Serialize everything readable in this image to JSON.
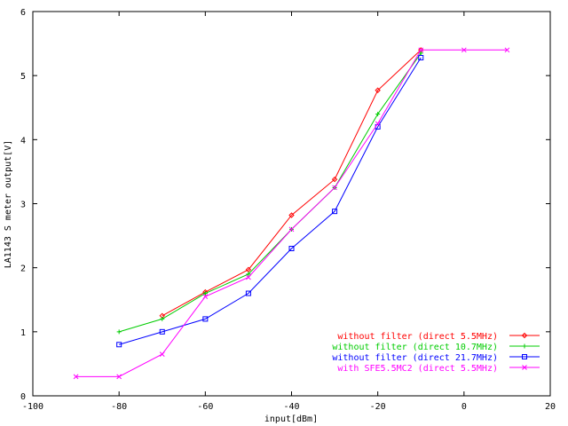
{
  "chart_data": {
    "type": "line",
    "title": "",
    "xlabel": "input[dBm]",
    "ylabel": "LA1143 S meter output[V]",
    "xlim": [
      -100,
      20
    ],
    "ylim": [
      0,
      6
    ],
    "xticks": [
      "-100",
      "-80",
      "-60",
      "-40",
      "-20",
      "0",
      "20"
    ],
    "yticks": [
      "0",
      "1",
      "2",
      "3",
      "4",
      "5",
      "6"
    ],
    "grid": false,
    "legend_position": "bottom-right",
    "series": [
      {
        "name": "without filter (direct 5.5MHz)",
        "color": "#ff0000",
        "marker": "diamond",
        "x": [
          -70,
          -60,
          -50,
          -40,
          -30,
          -20,
          -10
        ],
        "y": [
          1.25,
          1.62,
          1.97,
          2.82,
          3.38,
          4.77,
          5.4
        ]
      },
      {
        "name": "without filter (direct 10.7MHz)",
        "color": "#00cc00",
        "marker": "plus",
        "x": [
          -80,
          -70,
          -60,
          -50,
          -40,
          -30,
          -20,
          -10
        ],
        "y": [
          1.0,
          1.2,
          1.6,
          1.9,
          2.6,
          3.25,
          4.4,
          5.35
        ]
      },
      {
        "name": "without filter (direct 21.7MHz)",
        "color": "#0000ff",
        "marker": "square",
        "x": [
          -80,
          -70,
          -60,
          -50,
          -40,
          -30,
          -20,
          -10
        ],
        "y": [
          0.8,
          1.0,
          1.2,
          1.6,
          2.3,
          2.88,
          4.2,
          5.28
        ]
      },
      {
        "name": "with SFE5.5MC2 (direct 5.5MHz)",
        "color": "#ff00ff",
        "marker": "x",
        "x": [
          -90,
          -80,
          -70,
          -60,
          -50,
          -40,
          -30,
          -20,
          -10,
          0,
          10
        ],
        "y": [
          0.3,
          0.3,
          0.65,
          1.55,
          1.85,
          2.6,
          3.25,
          4.25,
          5.4,
          5.4,
          5.4
        ]
      }
    ]
  }
}
